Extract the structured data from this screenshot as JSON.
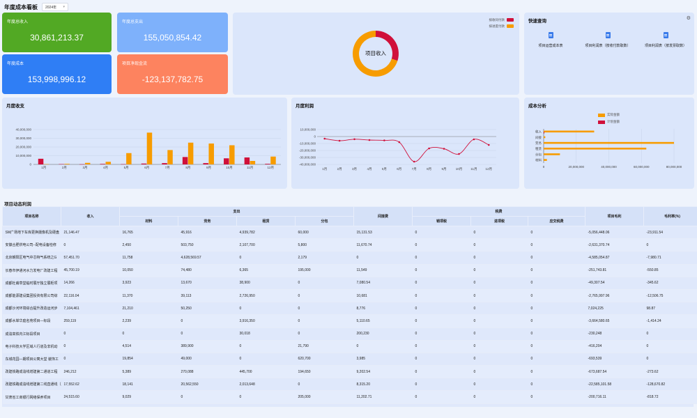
{
  "header": {
    "title": "年度成本看板",
    "year": "2024年"
  },
  "kpis": {
    "income": {
      "label": "年度总收入",
      "value": "30,861,213.37",
      "color": "#52a924"
    },
    "expense": {
      "label": "年度总支出",
      "value": "155,050,854.42",
      "color": "#7eb1fb"
    },
    "cost": {
      "label": "年度成本",
      "value": "153,998,996.12",
      "color": "#2f7ef5"
    },
    "cashflow": {
      "label": "项目净现金流",
      "value": "-123,137,782.75",
      "color": "#fd835f"
    }
  },
  "donut": {
    "center_label": "项目收入",
    "legend": [
      "按收同付款",
      "按进度付款"
    ],
    "colors": {
      "red": "#d0103a",
      "orange": "#f79c00"
    },
    "chart_data": {
      "type": "pie",
      "categories": [
        "按收同付款",
        "按进度付款"
      ],
      "values": [
        30,
        70
      ]
    }
  },
  "quick": {
    "title": "快速查询",
    "items": [
      "项目运营成本表",
      "项目利润表（按收付款取数）",
      "项目利润表（按发票取数）"
    ]
  },
  "monthly_income": {
    "title": "月度收支",
    "chart_data": {
      "type": "bar",
      "categories": [
        "1月",
        "2月",
        "3月",
        "4月",
        "5月",
        "6月",
        "7月",
        "8月",
        "9月",
        "10月",
        "11月",
        "12月"
      ],
      "series": [
        {
          "values": [
            6500000,
            400000,
            200000,
            600000,
            300000,
            1000000,
            1500000,
            8500000,
            1500000,
            7000000,
            8000000,
            700000
          ]
        },
        {
          "values": [
            300000,
            700000,
            1800000,
            3000000,
            13000000,
            36500000,
            16500000,
            25000000,
            24000000,
            22000000,
            4000000,
            9000000
          ]
        }
      ],
      "yticks": [
        "0",
        "10,000,000",
        "20,000,000",
        "30,000,000",
        "40,000,000"
      ],
      "ylim": [
        0,
        40000000
      ]
    }
  },
  "monthly_profit": {
    "title": "月度利润",
    "chart_data": {
      "type": "line",
      "categories": [
        "1月",
        "2月",
        "3月",
        "4月",
        "5月",
        "6月",
        "7月",
        "8月",
        "9月",
        "10月",
        "11月",
        "12月"
      ],
      "values": [
        -3000000,
        -6000000,
        -3800000,
        -5000000,
        -5500000,
        -8000000,
        -36000000,
        -17000000,
        -17500000,
        -25000000,
        -4000000,
        -12000000
      ],
      "yticks": [
        "10,000,000",
        "0",
        "-10,000,000",
        "-20,000,000",
        "-30,000,000",
        "-40,000,000"
      ],
      "ylim": [
        -40000000,
        10000000
      ]
    }
  },
  "cost_analysis": {
    "title": "成本分析",
    "legend": [
      "实际金额",
      "计划金额"
    ],
    "chart_data": {
      "type": "bar",
      "categories": [
        "收入",
        "间接",
        "劳务",
        "租赁",
        "分包",
        "材料"
      ],
      "series": [
        {
          "name": "实际金额",
          "values": [
            31000000,
            1000000,
            80000000,
            63000000,
            10000000,
            2000000
          ]
        },
        {
          "name": "计划金额",
          "values": [
            400000,
            0,
            0,
            0,
            0,
            0
          ]
        }
      ],
      "xticks": [
        "0",
        "20,000,000",
        "40,000,000",
        "60,000,000",
        "80,000,000"
      ],
      "xlim": [
        0,
        80000000
      ]
    }
  },
  "project_table": {
    "title": "项目动态利润",
    "headers": {
      "name": "项目名称",
      "income": "收入",
      "expense": "支出",
      "material": "材料",
      "labor": "劳务",
      "lease": "租赁",
      "subcontract": "分包",
      "indirect": "间接费",
      "tax": "税费",
      "sales_tax": "销项税",
      "input_tax": "进项税",
      "payable_tax": "应交税费",
      "gross_profit": "项目毛利",
      "margin": "毛利率(%)"
    },
    "rows": [
      [
        "SM广场地下车库更换摄像机及硬盘",
        "21,146.47",
        "16,765",
        "45,916",
        "4,939,782",
        "60,000",
        "15,131.53",
        "0",
        "0",
        "0",
        "-5,056,448.06",
        "-23,911.54"
      ],
      [
        "安徽合肥供电公司--配电设备检修",
        "0",
        "2,450",
        "503,750",
        "2,107,700",
        "5,800",
        "11,670.74",
        "0",
        "0",
        "0",
        "-2,631,370.74",
        "0"
      ],
      [
        "北京朝阳区电气中芯特气系统之G",
        "57,451.70",
        "11,758",
        "4,628,569.57",
        "0",
        "2,179",
        "0",
        "0",
        "0",
        "0",
        "-4,585,054.87",
        "-7,980.71"
      ],
      [
        "长春市伊通河水力发电厂改建工程",
        "45,700.19",
        "10,050",
        "74,480",
        "6,365",
        "195,000",
        "11,549",
        "0",
        "0",
        "0",
        "-251,743.81",
        "-550.85"
      ],
      [
        "成都杜甫草堂临时展厅独立展柜项",
        "14,266",
        "3,923",
        "13,670",
        "38,900",
        "0",
        "7,080.54",
        "0",
        "0",
        "0",
        "-49,307.54",
        "-345.62"
      ],
      [
        "成都能源建设集团投资有限公司综",
        "22,116.04",
        "11,370",
        "39,113",
        "2,726,950",
        "0",
        "10,681",
        "0",
        "0",
        "0",
        "-2,765,997.96",
        "-12,506.75"
      ],
      [
        "成都沙河环境综合提升改造运河步",
        "7,104,461",
        "21,210",
        "50,250",
        "0",
        "0",
        "8,776",
        "0",
        "0",
        "0",
        "7,024,225",
        "98.87"
      ],
      [
        "成都水岸华庭名苑项目—标段",
        "259,119",
        "2,239",
        "0",
        "3,916,350",
        "0",
        "5,110.65",
        "0",
        "0",
        "0",
        "-3,664,580.65",
        "-1,414.24"
      ],
      [
        "成渝高铁内江标段项目",
        "0",
        "0",
        "0",
        "30,018",
        "0",
        "200,230",
        "0",
        "0",
        "0",
        "-230,248",
        "0"
      ],
      [
        "电子科技大学区域人行道及非机动",
        "0",
        "4,514",
        "389,900",
        "0",
        "21,790",
        "0",
        "0",
        "0",
        "0",
        "-416,204",
        "0"
      ],
      [
        "东城花园—期项目公寓大堂 装饰工",
        "0",
        "19,854",
        "49,000",
        "0",
        "620,700",
        "3,985",
        "0",
        "0",
        "0",
        "-693,539",
        "0"
      ],
      [
        "改建铁路成渝线增建第二通道工程",
        "246,212",
        "5,389",
        "270,088",
        "445,700",
        "194,650",
        "9,202.54",
        "0",
        "0",
        "0",
        "-673,687.54",
        "-273.62"
      ],
      [
        "改建铁路成渝线增建第二线直通线（成",
        "17,552.62",
        "18,141",
        "20,562,550",
        "2,013,648",
        "0",
        "8,315.20",
        "0",
        "0",
        "0",
        "-22,585,101.58",
        "-128,670.82"
      ],
      [
        "甘肃省工商银行网络保养项目",
        "24,515.60",
        "9,029",
        "0",
        "0",
        "205,000",
        "11,202.71",
        "0",
        "0",
        "0",
        "-200,716.11",
        "-818.72"
      ]
    ]
  }
}
